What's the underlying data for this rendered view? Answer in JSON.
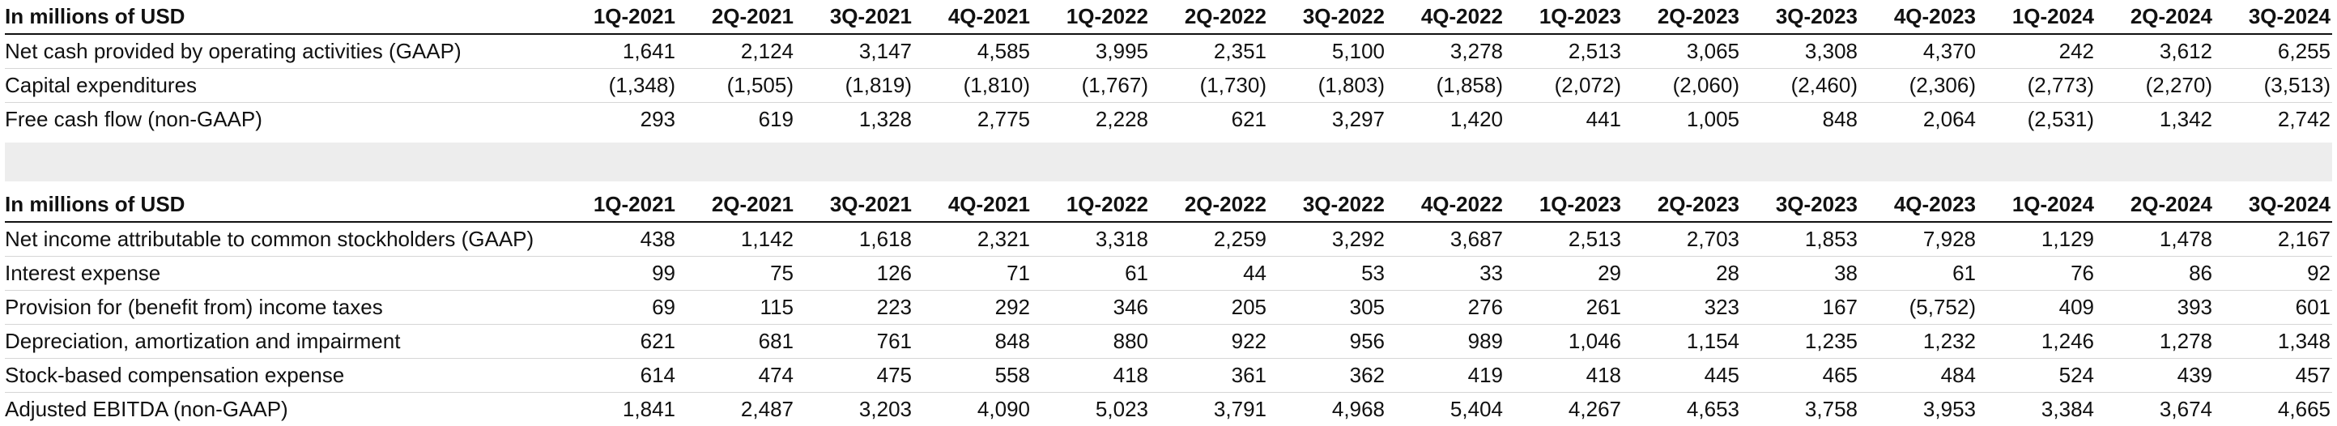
{
  "quarters": [
    "1Q-2021",
    "2Q-2021",
    "3Q-2021",
    "4Q-2021",
    "1Q-2022",
    "2Q-2022",
    "3Q-2022",
    "4Q-2022",
    "1Q-2023",
    "2Q-2023",
    "3Q-2023",
    "4Q-2023",
    "1Q-2024",
    "2Q-2024",
    "3Q-2024"
  ],
  "table1": {
    "header_label": "In millions of USD",
    "rows": [
      {
        "label": "Net cash provided by operating activities (GAAP)",
        "values": [
          "1,641",
          "2,124",
          "3,147",
          "4,585",
          "3,995",
          "2,351",
          "5,100",
          "3,278",
          "2,513",
          "3,065",
          "3,308",
          "4,370",
          "242",
          "3,612",
          "6,255"
        ]
      },
      {
        "label": "Capital expenditures",
        "values": [
          "(1,348)",
          "(1,505)",
          "(1,819)",
          "(1,810)",
          "(1,767)",
          "(1,730)",
          "(1,803)",
          "(1,858)",
          "(2,072)",
          "(2,060)",
          "(2,460)",
          "(2,306)",
          "(2,773)",
          "(2,270)",
          "(3,513)"
        ]
      },
      {
        "label": "Free cash flow (non-GAAP)",
        "values": [
          "293",
          "619",
          "1,328",
          "2,775",
          "2,228",
          "621",
          "3,297",
          "1,420",
          "441",
          "1,005",
          "848",
          "2,064",
          "(2,531)",
          "1,342",
          "2,742"
        ]
      }
    ]
  },
  "table2": {
    "header_label": "In millions of USD",
    "rows": [
      {
        "label": "Net income attributable to common stockholders (GAAP)",
        "values": [
          "438",
          "1,142",
          "1,618",
          "2,321",
          "3,318",
          "2,259",
          "3,292",
          "3,687",
          "2,513",
          "2,703",
          "1,853",
          "7,928",
          "1,129",
          "1,478",
          "2,167"
        ]
      },
      {
        "label": "Interest expense",
        "values": [
          "99",
          "75",
          "126",
          "71",
          "61",
          "44",
          "53",
          "33",
          "29",
          "28",
          "38",
          "61",
          "76",
          "86",
          "92"
        ]
      },
      {
        "label": "Provision for (benefit from) income taxes",
        "values": [
          "69",
          "115",
          "223",
          "292",
          "346",
          "205",
          "305",
          "276",
          "261",
          "323",
          "167",
          "(5,752)",
          "409",
          "393",
          "601"
        ]
      },
      {
        "label": "Depreciation, amortization and impairment",
        "values": [
          "621",
          "681",
          "761",
          "848",
          "880",
          "922",
          "956",
          "989",
          "1,046",
          "1,154",
          "1,235",
          "1,232",
          "1,246",
          "1,278",
          "1,348"
        ]
      },
      {
        "label": "Stock-based compensation expense",
        "values": [
          "614",
          "474",
          "475",
          "558",
          "418",
          "361",
          "362",
          "419",
          "418",
          "445",
          "465",
          "484",
          "524",
          "439",
          "457"
        ]
      },
      {
        "label": "Adjusted EBITDA (non-GAAP)",
        "values": [
          "1,841",
          "2,487",
          "3,203",
          "4,090",
          "5,023",
          "3,791",
          "4,968",
          "5,404",
          "4,267",
          "4,653",
          "3,758",
          "3,953",
          "3,384",
          "3,674",
          "4,665"
        ]
      }
    ]
  }
}
